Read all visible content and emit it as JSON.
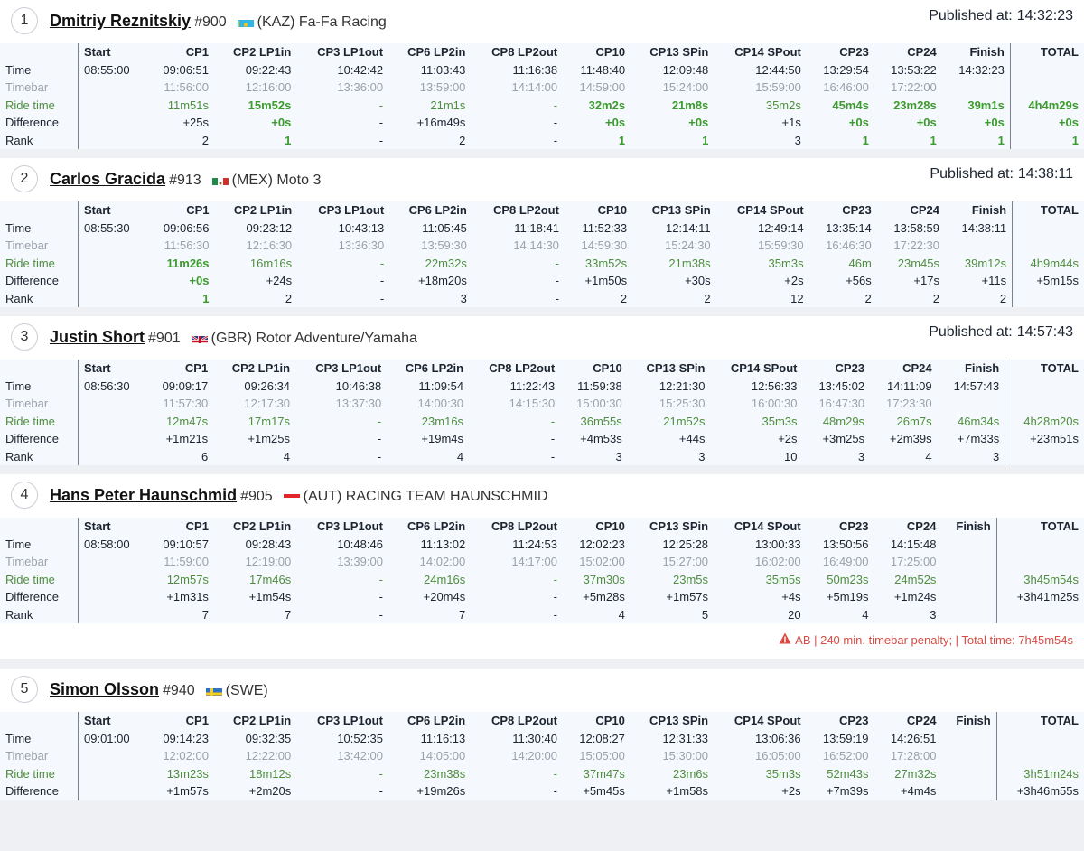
{
  "columns": [
    "",
    "Start",
    "CP1",
    "CP2 LP1in",
    "CP3 LP1out",
    "CP6 LP2in",
    "CP8 LP2out",
    "CP10",
    "CP13 SPin",
    "CP14 SPout",
    "CP23",
    "CP24",
    "Finish",
    "TOTAL"
  ],
  "published_label": "Published at:",
  "row_labels": {
    "time": "Time",
    "timebar": "Timebar",
    "ride": "Ride time",
    "diff": "Difference",
    "rank": "Rank"
  },
  "colors": {
    "accent_green": "#3c9b2e",
    "ride_green": "#4e8f3f",
    "penalty_red": "#d94b45",
    "muted": "#9aa1ab"
  },
  "riders": [
    {
      "pos": "1",
      "name": "Dmitriy Reznitskiy",
      "number": "#900",
      "flag": "flag-kaz-icon",
      "team": "(KAZ) Fa-Fa Racing",
      "published": "14:32:23",
      "time": [
        "08:55:00",
        "09:06:51",
        "09:22:43",
        "10:42:42",
        "11:03:43",
        "11:16:38",
        "11:48:40",
        "12:09:48",
        "12:44:50",
        "13:29:54",
        "13:53:22",
        "14:32:23",
        ""
      ],
      "timebar": [
        "",
        "11:56:00",
        "12:16:00",
        "13:36:00",
        "13:59:00",
        "14:14:00",
        "14:59:00",
        "15:24:00",
        "15:59:00",
        "16:46:00",
        "17:22:00",
        "",
        ""
      ],
      "ride": [
        "",
        "11m51s",
        "15m52s",
        "-",
        "21m1s",
        "-",
        "32m2s",
        "21m8s",
        "35m2s",
        "45m4s",
        "23m28s",
        "39m1s",
        "4h4m29s"
      ],
      "diff": [
        "",
        "+25s",
        "+0s",
        "-",
        "+16m49s",
        "-",
        "+0s",
        "+0s",
        "+1s",
        "+0s",
        "+0s",
        "+0s",
        "+0s"
      ],
      "rank": [
        "",
        "2",
        "1",
        "-",
        "2",
        "-",
        "1",
        "1",
        "3",
        "1",
        "1",
        "1",
        "1"
      ],
      "ride_best": [
        2,
        6,
        7,
        9,
        10,
        11,
        12
      ],
      "diff_best": [
        2,
        6,
        7,
        9,
        10,
        11,
        12
      ],
      "rank_best": [
        2,
        6,
        7,
        9,
        10,
        11,
        12
      ],
      "penalty": ""
    },
    {
      "pos": "2",
      "name": "Carlos Gracida",
      "number": "#913",
      "flag": "flag-mex-icon",
      "team": "(MEX) Moto 3",
      "published": "14:38:11",
      "time": [
        "08:55:30",
        "09:06:56",
        "09:23:12",
        "10:43:13",
        "11:05:45",
        "11:18:41",
        "11:52:33",
        "12:14:11",
        "12:49:14",
        "13:35:14",
        "13:58:59",
        "14:38:11",
        ""
      ],
      "timebar": [
        "",
        "11:56:30",
        "12:16:30",
        "13:36:30",
        "13:59:30",
        "14:14:30",
        "14:59:30",
        "15:24:30",
        "15:59:30",
        "16:46:30",
        "17:22:30",
        "",
        ""
      ],
      "ride": [
        "",
        "11m26s",
        "16m16s",
        "-",
        "22m32s",
        "-",
        "33m52s",
        "21m38s",
        "35m3s",
        "46m",
        "23m45s",
        "39m12s",
        "4h9m44s"
      ],
      "diff": [
        "",
        "+0s",
        "+24s",
        "-",
        "+18m20s",
        "-",
        "+1m50s",
        "+30s",
        "+2s",
        "+56s",
        "+17s",
        "+11s",
        "+5m15s"
      ],
      "rank": [
        "",
        "1",
        "2",
        "-",
        "3",
        "-",
        "2",
        "2",
        "12",
        "2",
        "2",
        "2",
        ""
      ],
      "ride_best": [
        1
      ],
      "diff_best": [
        1
      ],
      "rank_best": [
        1
      ],
      "penalty": ""
    },
    {
      "pos": "3",
      "name": "Justin Short",
      "number": "#901",
      "flag": "flag-gbr-icon",
      "team": "(GBR) Rotor Adventure/Yamaha",
      "published": "14:57:43",
      "time": [
        "08:56:30",
        "09:09:17",
        "09:26:34",
        "10:46:38",
        "11:09:54",
        "11:22:43",
        "11:59:38",
        "12:21:30",
        "12:56:33",
        "13:45:02",
        "14:11:09",
        "14:57:43",
        ""
      ],
      "timebar": [
        "",
        "11:57:30",
        "12:17:30",
        "13:37:30",
        "14:00:30",
        "14:15:30",
        "15:00:30",
        "15:25:30",
        "16:00:30",
        "16:47:30",
        "17:23:30",
        "",
        ""
      ],
      "ride": [
        "",
        "12m47s",
        "17m17s",
        "-",
        "23m16s",
        "-",
        "36m55s",
        "21m52s",
        "35m3s",
        "48m29s",
        "26m7s",
        "46m34s",
        "4h28m20s"
      ],
      "diff": [
        "",
        "+1m21s",
        "+1m25s",
        "-",
        "+19m4s",
        "-",
        "+4m53s",
        "+44s",
        "+2s",
        "+3m25s",
        "+2m39s",
        "+7m33s",
        "+23m51s"
      ],
      "rank": [
        "",
        "6",
        "4",
        "-",
        "4",
        "-",
        "3",
        "3",
        "10",
        "3",
        "4",
        "3",
        ""
      ],
      "ride_best": [],
      "diff_best": [],
      "rank_best": [],
      "penalty": ""
    },
    {
      "pos": "4",
      "name": "Hans Peter Haunschmid",
      "number": "#905",
      "flag": "flag-aut-icon",
      "team": "(AUT) RACING TEAM HAUNSCHMID",
      "published": "",
      "time": [
        "08:58:00",
        "09:10:57",
        "09:28:43",
        "10:48:46",
        "11:13:02",
        "11:24:53",
        "12:02:23",
        "12:25:28",
        "13:00:33",
        "13:50:56",
        "14:15:48",
        "",
        ""
      ],
      "timebar": [
        "",
        "11:59:00",
        "12:19:00",
        "13:39:00",
        "14:02:00",
        "14:17:00",
        "15:02:00",
        "15:27:00",
        "16:02:00",
        "16:49:00",
        "17:25:00",
        "",
        ""
      ],
      "ride": [
        "",
        "12m57s",
        "17m46s",
        "-",
        "24m16s",
        "-",
        "37m30s",
        "23m5s",
        "35m5s",
        "50m23s",
        "24m52s",
        "",
        "3h45m54s"
      ],
      "diff": [
        "",
        "+1m31s",
        "+1m54s",
        "-",
        "+20m4s",
        "-",
        "+5m28s",
        "+1m57s",
        "+4s",
        "+5m19s",
        "+1m24s",
        "",
        "+3h41m25s"
      ],
      "rank": [
        "",
        "7",
        "7",
        "-",
        "7",
        "-",
        "4",
        "5",
        "20",
        "4",
        "3",
        "",
        ""
      ],
      "ride_best": [],
      "diff_best": [],
      "rank_best": [],
      "penalty": "AB | 240 min. timebar penalty; | Total time: 7h45m54s"
    },
    {
      "pos": "5",
      "name": "Simon Olsson",
      "number": "#940",
      "flag": "flag-swe-icon",
      "team": "(SWE)",
      "published": "",
      "time": [
        "09:01:00",
        "09:14:23",
        "09:32:35",
        "10:52:35",
        "11:16:13",
        "11:30:40",
        "12:08:27",
        "12:31:33",
        "13:06:36",
        "13:59:19",
        "14:26:51",
        "",
        ""
      ],
      "timebar": [
        "",
        "12:02:00",
        "12:22:00",
        "13:42:00",
        "14:05:00",
        "14:20:00",
        "15:05:00",
        "15:30:00",
        "16:05:00",
        "16:52:00",
        "17:28:00",
        "",
        ""
      ],
      "ride": [
        "",
        "13m23s",
        "18m12s",
        "-",
        "23m38s",
        "-",
        "37m47s",
        "23m6s",
        "35m3s",
        "52m43s",
        "27m32s",
        "",
        "3h51m24s"
      ],
      "diff": [
        "",
        "+1m57s",
        "+2m20s",
        "-",
        "+19m26s",
        "-",
        "+5m45s",
        "+1m58s",
        "+2s",
        "+7m39s",
        "+4m4s",
        "",
        "+3h46m55s"
      ],
      "rank": null,
      "ride_best": [],
      "diff_best": [],
      "rank_best": [],
      "penalty": ""
    }
  ]
}
